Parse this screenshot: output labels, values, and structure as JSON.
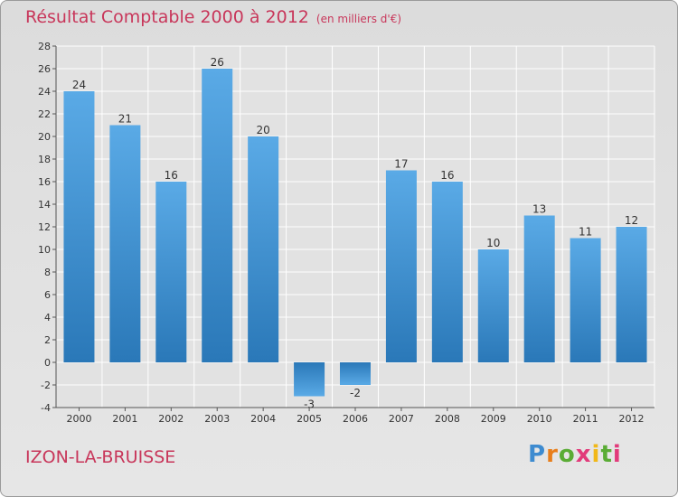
{
  "chart_data": {
    "type": "bar",
    "title": "Résultat Comptable 2000 à 2012",
    "unit": "(en milliers d'€)",
    "categories": [
      "2000",
      "2001",
      "2002",
      "2003",
      "2004",
      "2005",
      "2006",
      "2007",
      "2008",
      "2009",
      "2010",
      "2011",
      "2012"
    ],
    "values": [
      24,
      21,
      16,
      26,
      20,
      -3,
      -2,
      17,
      16,
      10,
      13,
      11,
      12
    ],
    "ylim": [
      -4,
      28
    ],
    "ytick_step": 2,
    "xlabel": "",
    "ylabel": "",
    "grid": true
  },
  "footer": {
    "commune": "IZON-LA-BRUISSE",
    "logo": "Proxiti"
  },
  "colors": {
    "title": "#c8365a",
    "bar_light": "#5aaae6",
    "bar_dark": "#2a78b8",
    "grid": "#ffffff",
    "background": "#e2e2e2"
  }
}
